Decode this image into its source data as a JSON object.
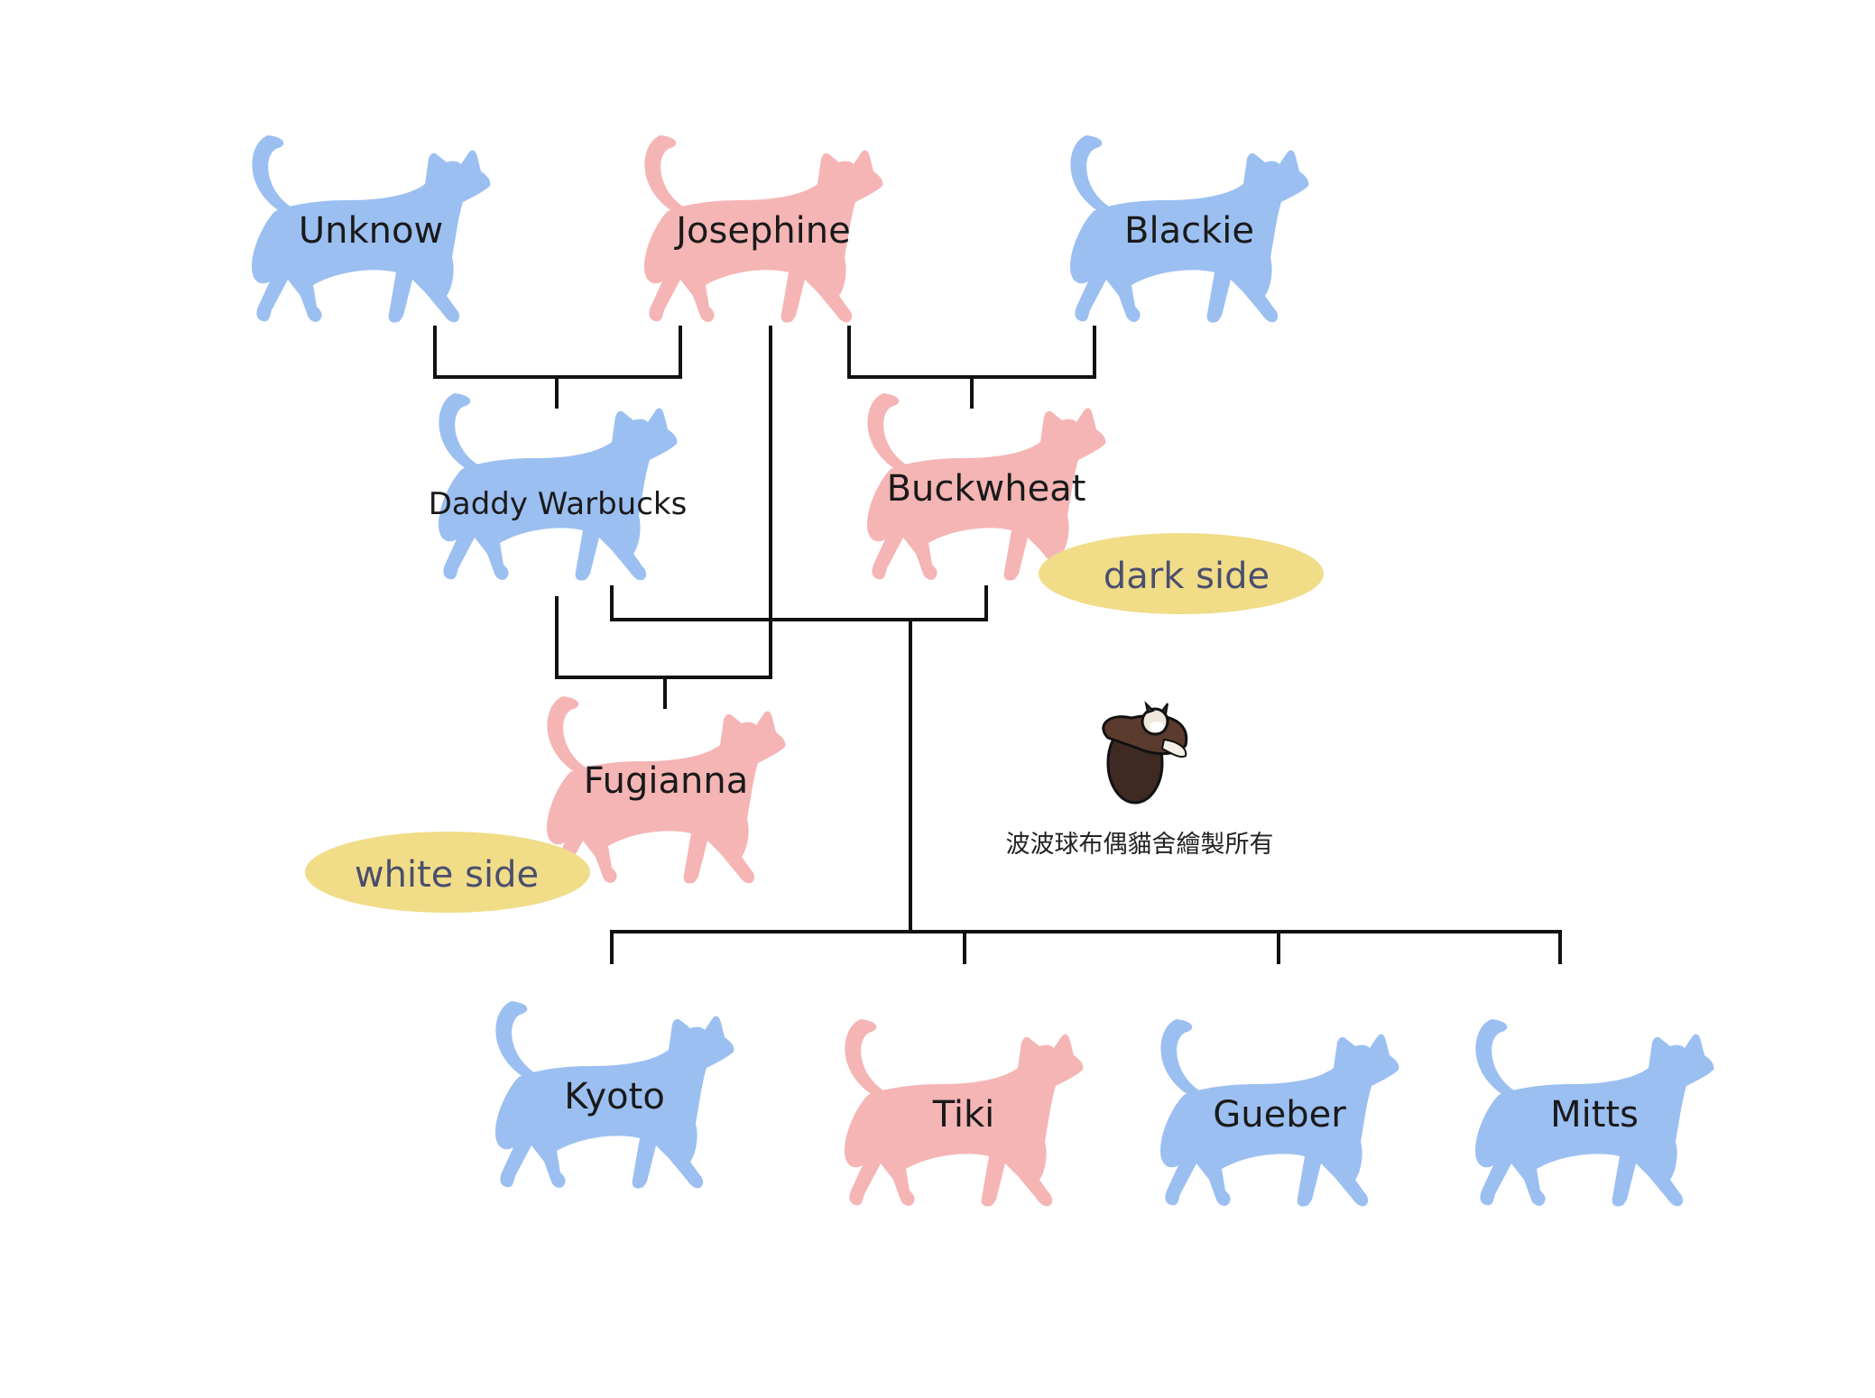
{
  "colors": {
    "male": "#9bbff1",
    "female": "#f5b5b5",
    "side_badge": "#f1dc88",
    "line": "#111111"
  },
  "cats": {
    "unknow": {
      "name": "Unknow",
      "sex": "male"
    },
    "josephine": {
      "name": "Josephine",
      "sex": "female"
    },
    "blackie": {
      "name": "Blackie",
      "sex": "male"
    },
    "daddy": {
      "name": "Daddy Warbucks",
      "sex": "male"
    },
    "buckwheat": {
      "name": "Buckwheat",
      "sex": "female"
    },
    "fugianna": {
      "name": "Fugianna",
      "sex": "female"
    },
    "kyoto": {
      "name": "Kyoto",
      "sex": "male"
    },
    "tiki": {
      "name": "Tiki",
      "sex": "female"
    },
    "gueber": {
      "name": "Gueber",
      "sex": "male"
    },
    "mitts": {
      "name": "Mitts",
      "sex": "male"
    }
  },
  "badges": {
    "dark": "dark side",
    "white": "white side"
  },
  "credit": "波波球布偶貓舍繪製所有",
  "logo_icon": "ragdoll-cat-logo-icon"
}
